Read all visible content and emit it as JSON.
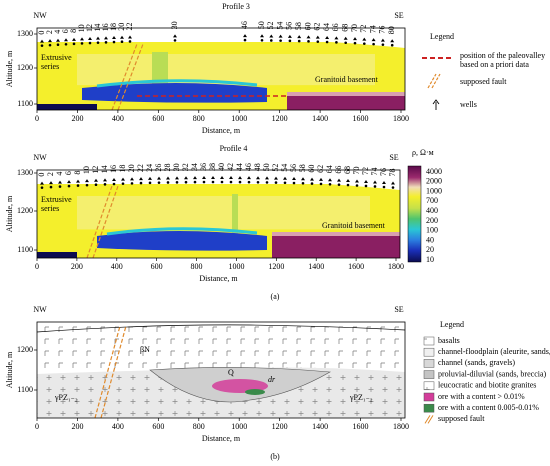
{
  "panel_a": {
    "profile3": {
      "title": "Profile 3",
      "nw": "NW",
      "se": "SE",
      "y_label": "Altitude, m",
      "x_label": "Distance, m",
      "yticks": [
        "1300",
        "1200",
        "1100"
      ],
      "xticks": [
        "0",
        "200",
        "400",
        "600",
        "800",
        "1000",
        "1200",
        "1400",
        "1600",
        "1800"
      ],
      "wells": [
        "0",
        "2",
        "4",
        "6",
        "8",
        "10",
        "12",
        "14",
        "16",
        "18",
        "20",
        "22",
        "30",
        "46",
        "50",
        "52",
        "54",
        "56",
        "58",
        "60",
        "62",
        "64",
        "66",
        "68",
        "70",
        "72",
        "74",
        "76",
        "80"
      ],
      "series_label": [
        "Extrusive",
        "series"
      ],
      "basement_label": "Granitoid basement"
    },
    "profile4": {
      "title": "Profile 4",
      "nw": "NW",
      "se": "SE",
      "y_label": "Altitude, m",
      "x_label": "Distance, m",
      "yticks": [
        "1300",
        "1200",
        "1100"
      ],
      "xticks": [
        "0",
        "200",
        "400",
        "600",
        "800",
        "1000",
        "1200",
        "1400",
        "1600",
        "1800"
      ],
      "wells": [
        "0",
        "2",
        "4",
        "6",
        "8",
        "10",
        "12",
        "14",
        "16",
        "18",
        "20",
        "22",
        "24",
        "26",
        "28",
        "30",
        "32",
        "34",
        "36",
        "38",
        "40",
        "42",
        "44",
        "46",
        "48",
        "50",
        "52",
        "54",
        "56",
        "58",
        "60",
        "62",
        "64",
        "66",
        "68",
        "70",
        "72",
        "74",
        "76",
        "78"
      ],
      "series_label": [
        "Extrusive",
        "series"
      ],
      "basement_label": "Granitoid basement"
    },
    "legend": {
      "title": "Legend",
      "items": [
        [
          "position of the paleovalley",
          "based on a priori data"
        ],
        [
          "supposed fault"
        ],
        [
          "wells"
        ]
      ]
    },
    "colorbar": {
      "title": "ρ, Ω·м",
      "ticks": [
        "4000",
        "2000",
        "1000",
        "700",
        "400",
        "200",
        "100",
        "40",
        "20",
        "10"
      ]
    },
    "caption": "(a)"
  },
  "panel_b": {
    "nw": "NW",
    "se": "SE",
    "y_label": "Altitude, m",
    "x_label": "Distance, m",
    "yticks": [
      "1200",
      "1100"
    ],
    "xticks": [
      "0",
      "200",
      "400",
      "600",
      "800",
      "1000",
      "1200",
      "1400",
      "1600",
      "1800"
    ],
    "labels": {
      "basalt": "βN",
      "granite_left": "γPZ₁₋₂",
      "granite_right": "γPZ₁₋₂",
      "valley": "Q",
      "drift": "dr"
    },
    "legend": {
      "title": "Legend",
      "items": [
        "basalts",
        "channel-floodplain (aleurite, sands, clays)",
        "channel (sands, gravels)",
        "proluvial-diluvial (sands, breccia)",
        "leucocratic and biotite granites",
        "ore with a content > 0.01%",
        "ore with a content 0.005-0.01%",
        "supposed fault"
      ]
    },
    "caption": "(b)"
  }
}
